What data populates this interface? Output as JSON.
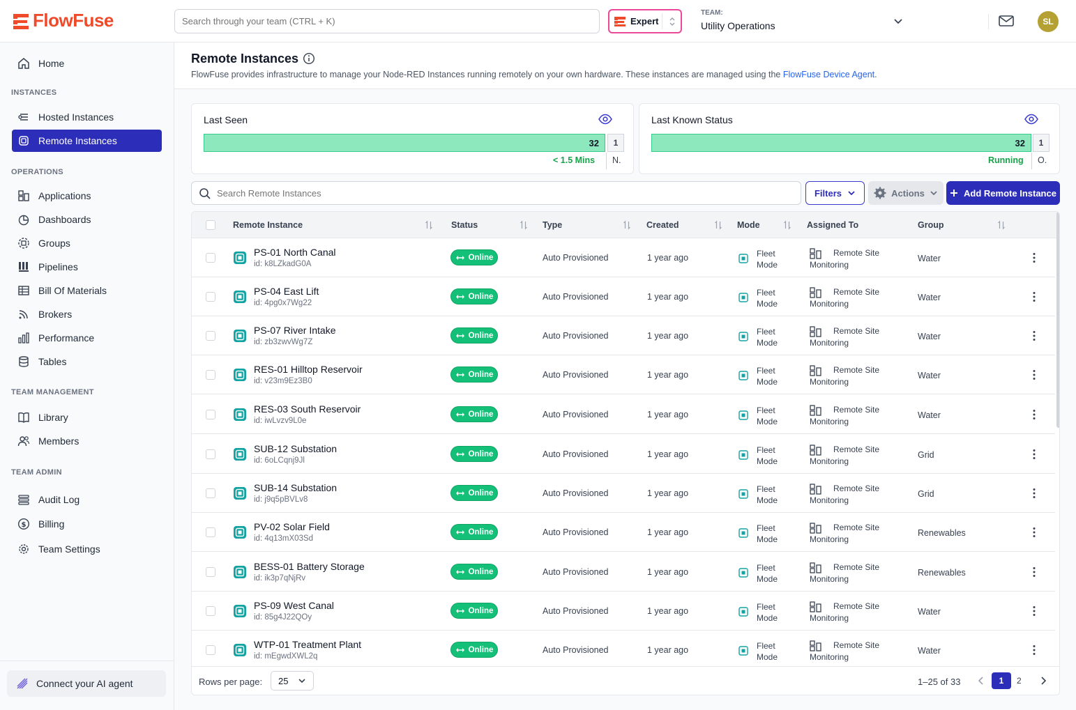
{
  "brand": {
    "name": "FlowFuse",
    "color": "#ef4b2b",
    "accent": "#2c2db8"
  },
  "header": {
    "search_placeholder": "Search through your team (CTRL + K)",
    "expert_label": "Expert",
    "team_label": "TEAM:",
    "team_name": "Utility Operations",
    "avatar_initials": "SL"
  },
  "sidebar": {
    "home": "Home",
    "sections": {
      "instances": "INSTANCES",
      "operations": "OPERATIONS",
      "team_management": "TEAM MANAGEMENT",
      "team_admin": "TEAM ADMIN"
    },
    "items": {
      "hosted_instances": "Hosted Instances",
      "remote_instances": "Remote Instances",
      "applications": "Applications",
      "dashboards": "Dashboards",
      "groups": "Groups",
      "pipelines": "Pipelines",
      "bill_of_materials": "Bill Of Materials",
      "brokers": "Brokers",
      "performance": "Performance",
      "tables": "Tables",
      "library": "Library",
      "members": "Members",
      "audit_log": "Audit Log",
      "billing": "Billing",
      "team_settings": "Team Settings"
    },
    "connect_ai": "Connect your AI agent"
  },
  "page": {
    "title": "Remote Instances",
    "description": "FlowFuse provides infrastructure to manage your Node-RED Instances running remotely on your own hardware. These instances are managed using the ",
    "description_link": "FlowFuse Device Agent",
    "description_end": "."
  },
  "cards": {
    "last_seen": {
      "title": "Last Seen",
      "main_value": "32",
      "other_value": "1",
      "main_label": "< 1.5 Mins",
      "other_label": "N."
    },
    "last_status": {
      "title": "Last Known Status",
      "main_value": "32",
      "other_value": "1",
      "main_label": "Running",
      "other_label": "O."
    }
  },
  "toolbar": {
    "search_placeholder": "Search Remote Instances",
    "filters": "Filters",
    "actions": "Actions",
    "add": "Add Remote Instance"
  },
  "table": {
    "headers": {
      "instance": "Remote Instance",
      "status": "Status",
      "type": "Type",
      "created": "Created",
      "mode": "Mode",
      "assigned": "Assigned To",
      "group": "Group"
    },
    "rows": [
      {
        "name": "PS-01 North Canal",
        "id": "id: k8LZkadG0A",
        "status": "Online",
        "type": "Auto Provisioned",
        "created": "1 year ago",
        "mode1": "Fleet",
        "mode2": "Mode",
        "assigned1": "Remote Site",
        "assigned2": "Monitoring",
        "group": "Water"
      },
      {
        "name": "PS-04 East Lift",
        "id": "id: 4pg0x7Wg22",
        "status": "Online",
        "type": "Auto Provisioned",
        "created": "1 year ago",
        "mode1": "Fleet",
        "mode2": "Mode",
        "assigned1": "Remote Site",
        "assigned2": "Monitoring",
        "group": "Water"
      },
      {
        "name": "PS-07 River Intake",
        "id": "id: zb3zwvWg7Z",
        "status": "Online",
        "type": "Auto Provisioned",
        "created": "1 year ago",
        "mode1": "Fleet",
        "mode2": "Mode",
        "assigned1": "Remote Site",
        "assigned2": "Monitoring",
        "group": "Water"
      },
      {
        "name": "RES-01 Hilltop Reservoir",
        "id": "id: v23m9Ez3B0",
        "status": "Online",
        "type": "Auto Provisioned",
        "created": "1 year ago",
        "mode1": "Fleet",
        "mode2": "Mode",
        "assigned1": "Remote Site",
        "assigned2": "Monitoring",
        "group": "Water"
      },
      {
        "name": "RES-03 South Reservoir",
        "id": "id: iwLvzv9L0e",
        "status": "Online",
        "type": "Auto Provisioned",
        "created": "1 year ago",
        "mode1": "Fleet",
        "mode2": "Mode",
        "assigned1": "Remote Site",
        "assigned2": "Monitoring",
        "group": "Water"
      },
      {
        "name": "SUB-12 Substation",
        "id": "id: 6oLCqnj9Jl",
        "status": "Online",
        "type": "Auto Provisioned",
        "created": "1 year ago",
        "mode1": "Fleet",
        "mode2": "Mode",
        "assigned1": "Remote Site",
        "assigned2": "Monitoring",
        "group": "Grid"
      },
      {
        "name": "SUB-14 Substation",
        "id": "id: j9q5pBVLv8",
        "status": "Online",
        "type": "Auto Provisioned",
        "created": "1 year ago",
        "mode1": "Fleet",
        "mode2": "Mode",
        "assigned1": "Remote Site",
        "assigned2": "Monitoring",
        "group": "Grid"
      },
      {
        "name": "PV-02 Solar Field",
        "id": "id: 4q13mX03Sd",
        "status": "Online",
        "type": "Auto Provisioned",
        "created": "1 year ago",
        "mode1": "Fleet",
        "mode2": "Mode",
        "assigned1": "Remote Site",
        "assigned2": "Monitoring",
        "group": "Renewables"
      },
      {
        "name": "BESS-01 Battery Storage",
        "id": "id: ik3p7qNjRv",
        "status": "Online",
        "type": "Auto Provisioned",
        "created": "1 year ago",
        "mode1": "Fleet",
        "mode2": "Mode",
        "assigned1": "Remote Site",
        "assigned2": "Monitoring",
        "group": "Renewables"
      },
      {
        "name": "PS-09 West Canal",
        "id": "id: 85g4J22QOy",
        "status": "Online",
        "type": "Auto Provisioned",
        "created": "1 year ago",
        "mode1": "Fleet",
        "mode2": "Mode",
        "assigned1": "Remote Site",
        "assigned2": "Monitoring",
        "group": "Water"
      },
      {
        "name": "WTP-01 Treatment Plant",
        "id": "id: mEgwdXWL2q",
        "status": "Online",
        "type": "Auto Provisioned",
        "created": "1 year ago",
        "mode1": "Fleet",
        "mode2": "Mode",
        "assigned1": "Remote Site",
        "assigned2": "Monitoring",
        "group": "Water"
      }
    ]
  },
  "pagination": {
    "rows_label": "Rows per page:",
    "rows_value": "25",
    "range": "1–25 of 33",
    "page1": "1",
    "page2": "2"
  }
}
